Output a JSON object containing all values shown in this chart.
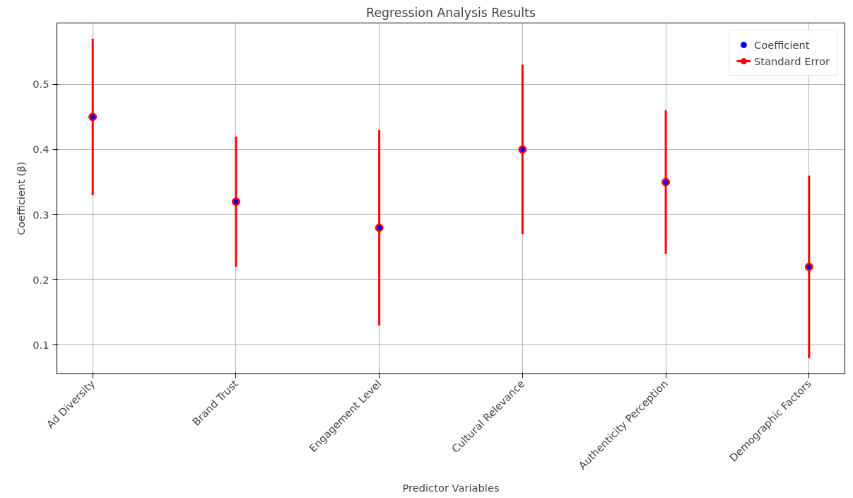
{
  "chart_data": {
    "type": "scatter",
    "title": "Regression Analysis Results",
    "xlabel": "Predictor Variables",
    "ylabel": "Coefficient (β)",
    "categories": [
      "Ad Diversity",
      "Brand Trust",
      "Engagement Level",
      "Cultural Relevance",
      "Authenticity Perception",
      "Demographic Factors"
    ],
    "series": [
      {
        "name": "Coefficient",
        "color": "#0000ff",
        "values": [
          0.45,
          0.32,
          0.28,
          0.4,
          0.35,
          0.22
        ]
      },
      {
        "name": "Standard Error",
        "color": "#ff0000",
        "values": [
          0.45,
          0.32,
          0.28,
          0.4,
          0.35,
          0.22
        ],
        "errors": [
          0.12,
          0.1,
          0.15,
          0.13,
          0.11,
          0.14
        ]
      }
    ],
    "ylim": [
      0.056,
      0.594
    ],
    "yticks": [
      0.1,
      0.2,
      0.3,
      0.4,
      0.5
    ],
    "grid": true,
    "legend": "top right",
    "marker": "circle"
  }
}
